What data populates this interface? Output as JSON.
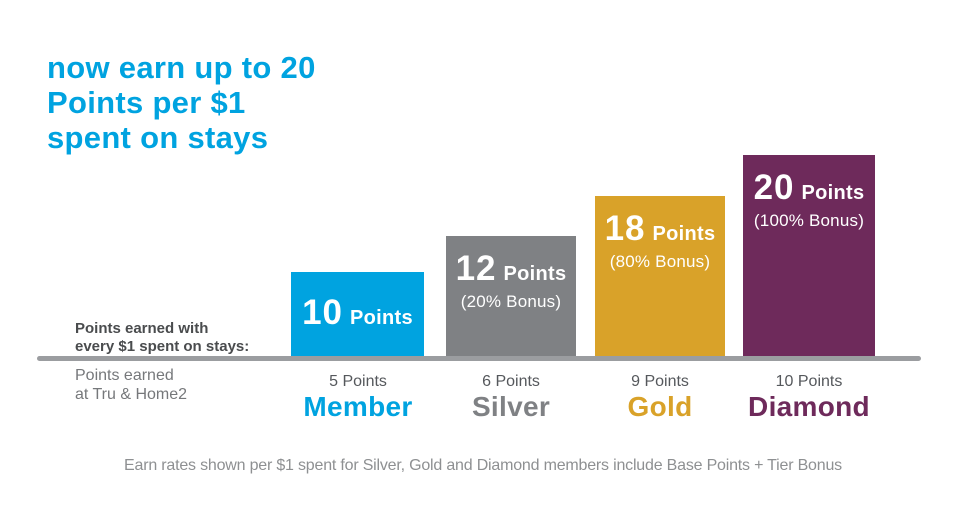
{
  "page": {
    "title": "now earn up to 20\nPoints per $1\nspent on stays",
    "footer": "Earn rates shown per $1 spent for Silver, Gold and Diamond members include Base Points + Tier Bonus"
  },
  "axis": {
    "earn_label": "Points earned with\nevery $1 spent on stays:",
    "base_label": "Points earned\nat Tru & Home2"
  },
  "colors": {
    "accent_blue": "#00A3E0",
    "member": "#00A3E0",
    "silver": "#7F8184",
    "gold": "#D9A229",
    "diamond": "#6E2A5B",
    "axis_line": "#9B9DA0",
    "label_dark": "#4A4C4E",
    "label_gray": "#76787B",
    "footer_gray": "#8E9092"
  },
  "chart_data": {
    "type": "bar",
    "title": "now earn up to 20 Points per $1 spent on stays",
    "categories": [
      "Member",
      "Silver",
      "Gold",
      "Diamond"
    ],
    "series": [
      {
        "name": "Points earned with every $1 spent on stays",
        "values": [
          10,
          12,
          18,
          20
        ]
      },
      {
        "name": "Points earned at Tru & Home2",
        "values": [
          5,
          6,
          9,
          10
        ]
      }
    ],
    "ylim": [
      0,
      20
    ],
    "grid": false,
    "legend": false,
    "bars": [
      {
        "tier": "Member",
        "points": "10",
        "points_word": "Points",
        "bonus": "",
        "base": "5 Points",
        "color": "#00A3E0"
      },
      {
        "tier": "Silver",
        "points": "12",
        "points_word": "Points",
        "bonus": "(20% Bonus)",
        "base": "6 Points",
        "color": "#7F8184"
      },
      {
        "tier": "Gold",
        "points": "18",
        "points_word": "Points",
        "bonus": "(80% Bonus)",
        "base": "9 Points",
        "color": "#D9A229"
      },
      {
        "tier": "Diamond",
        "points": "20",
        "points_word": "Points",
        "bonus": "(100% Bonus)",
        "base": "10 Points",
        "color": "#6E2A5B"
      }
    ]
  }
}
